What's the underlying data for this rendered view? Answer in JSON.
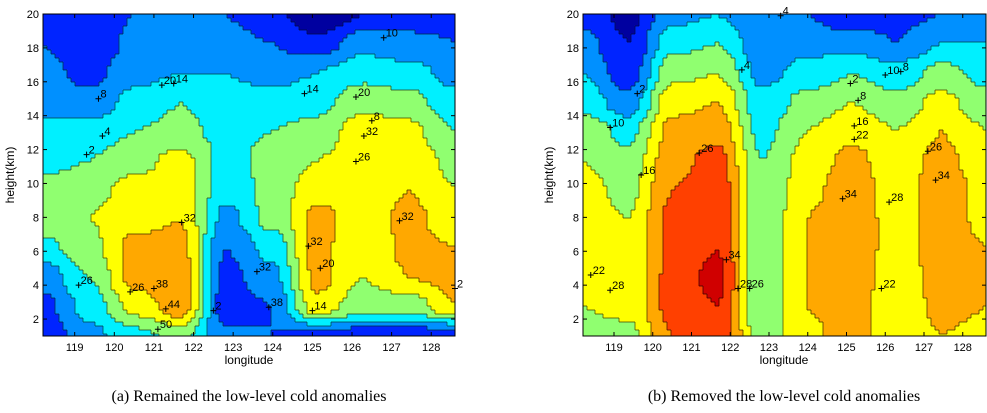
{
  "chart_data": [
    {
      "type": "contour",
      "caption": "(a) Remained the low-level cold anomalies",
      "xlabel": "longitude",
      "ylabel": "height(km)",
      "xlim": [
        118.2,
        128.6
      ],
      "ylim": [
        1,
        20
      ],
      "xticks": [
        119,
        120,
        121,
        122,
        123,
        124,
        125,
        126,
        127,
        128
      ],
      "yticks": [
        2,
        4,
        6,
        8,
        10,
        12,
        14,
        16,
        18,
        20
      ],
      "levels": [
        -4,
        2,
        8,
        14,
        20,
        26,
        32,
        38,
        44,
        50
      ],
      "field": [
        [
          4,
          12,
          18,
          22,
          10,
          8,
          6,
          4,
          4,
          4
        ],
        [
          6,
          16,
          28,
          36,
          4,
          8,
          30,
          22,
          22,
          32
        ],
        [
          10,
          20,
          34,
          36,
          6,
          12,
          34,
          26,
          32,
          34
        ],
        [
          18,
          24,
          34,
          34,
          8,
          16,
          34,
          26,
          34,
          32
        ],
        [
          24,
          26,
          30,
          32,
          12,
          22,
          34,
          28,
          34,
          28
        ],
        [
          22,
          24,
          28,
          30,
          16,
          22,
          30,
          28,
          32,
          26
        ],
        [
          18,
          20,
          24,
          28,
          18,
          22,
          26,
          30,
          30,
          24
        ],
        [
          16,
          16,
          20,
          22,
          18,
          20,
          22,
          30,
          28,
          20
        ],
        [
          12,
          10,
          16,
          20,
          16,
          16,
          18,
          24,
          22,
          16
        ],
        [
          10,
          6,
          12,
          14,
          14,
          12,
          14,
          18,
          16,
          12
        ],
        [
          8,
          2,
          10,
          12,
          10,
          8,
          4,
          12,
          10,
          8
        ],
        [
          6,
          4,
          8,
          8,
          8,
          4,
          -4,
          2,
          4,
          6
        ]
      ],
      "contour_labels": [
        {
          "text": "26",
          "x": 119.1,
          "y": 4.0
        },
        {
          "text": "26",
          "x": 120.4,
          "y": 3.6
        },
        {
          "text": "38",
          "x": 121.0,
          "y": 3.8
        },
        {
          "text": "44",
          "x": 121.3,
          "y": 2.6
        },
        {
          "text": "50",
          "x": 121.1,
          "y": 1.4
        },
        {
          "text": "32",
          "x": 121.7,
          "y": 7.7
        },
        {
          "text": "2",
          "x": 122.5,
          "y": 2.5
        },
        {
          "text": "32",
          "x": 123.6,
          "y": 4.8
        },
        {
          "text": "38",
          "x": 123.9,
          "y": 2.7
        },
        {
          "text": "32",
          "x": 124.9,
          "y": 6.3
        },
        {
          "text": "20",
          "x": 125.2,
          "y": 5.0
        },
        {
          "text": "26",
          "x": 126.1,
          "y": 11.3
        },
        {
          "text": "32",
          "x": 126.3,
          "y": 12.8
        },
        {
          "text": "32",
          "x": 127.2,
          "y": 7.8
        },
        {
          "text": "20",
          "x": 121.2,
          "y": 15.8
        },
        {
          "text": "14",
          "x": 121.5,
          "y": 15.9
        },
        {
          "text": "14",
          "x": 124.8,
          "y": 15.3
        },
        {
          "text": "20",
          "x": 126.1,
          "y": 15.1
        },
        {
          "text": "8",
          "x": 126.5,
          "y": 13.7
        },
        {
          "text": "10",
          "x": 126.8,
          "y": 18.6
        },
        {
          "text": "2",
          "x": 119.3,
          "y": 11.7
        },
        {
          "text": "4",
          "x": 119.7,
          "y": 12.8
        },
        {
          "text": "8",
          "x": 119.6,
          "y": 15.0
        },
        {
          "text": "2",
          "x": 128.6,
          "y": 3.8
        },
        {
          "text": "14",
          "x": 125.0,
          "y": 2.5
        }
      ]
    },
    {
      "type": "contour",
      "caption": "(b) Removed the low-level cold anomalies",
      "xlabel": "longitude",
      "ylabel": "height(km)",
      "xlim": [
        118.2,
        128.6
      ],
      "ylim": [
        1,
        20
      ],
      "xticks": [
        119,
        120,
        121,
        122,
        123,
        124,
        125,
        126,
        127,
        128
      ],
      "yticks": [
        2,
        4,
        6,
        8,
        10,
        12,
        14,
        16,
        18,
        20
      ],
      "levels": [
        -4,
        2,
        8,
        14,
        20,
        26,
        32,
        38,
        44,
        50
      ],
      "field": [
        [
          22,
          24,
          38,
          44,
          22,
          30,
          36,
          26,
          32,
          30
        ],
        [
          26,
          28,
          40,
          44,
          20,
          32,
          36,
          26,
          34,
          32
        ],
        [
          28,
          28,
          40,
          46,
          20,
          32,
          38,
          26,
          36,
          32
        ],
        [
          30,
          26,
          40,
          44,
          20,
          32,
          38,
          28,
          36,
          32
        ],
        [
          30,
          26,
          40,
          44,
          20,
          32,
          38,
          28,
          36,
          30
        ],
        [
          28,
          24,
          38,
          42,
          20,
          30,
          36,
          28,
          36,
          30
        ],
        [
          26,
          22,
          36,
          40,
          20,
          28,
          34,
          28,
          34,
          28
        ],
        [
          24,
          18,
          34,
          36,
          18,
          26,
          30,
          26,
          32,
          26
        ],
        [
          18,
          10,
          30,
          32,
          16,
          22,
          26,
          22,
          28,
          22
        ],
        [
          14,
          4,
          24,
          26,
          12,
          16,
          20,
          16,
          22,
          18
        ],
        [
          10,
          2,
          18,
          20,
          10,
          12,
          12,
          8,
          14,
          14
        ],
        [
          6,
          0,
          12,
          14,
          8,
          8,
          2,
          6,
          8,
          10
        ]
      ],
      "contour_labels": [
        {
          "text": "22",
          "x": 118.4,
          "y": 4.6
        },
        {
          "text": "28",
          "x": 118.9,
          "y": 3.7
        },
        {
          "text": "10",
          "x": 118.9,
          "y": 13.3
        },
        {
          "text": "16",
          "x": 119.7,
          "y": 10.5
        },
        {
          "text": "2",
          "x": 119.6,
          "y": 15.3
        },
        {
          "text": "26",
          "x": 121.2,
          "y": 11.8
        },
        {
          "text": "34",
          "x": 121.9,
          "y": 5.5
        },
        {
          "text": "28",
          "x": 122.2,
          "y": 3.8
        },
        {
          "text": "26",
          "x": 122.5,
          "y": 3.8
        },
        {
          "text": "4",
          "x": 122.3,
          "y": 16.7
        },
        {
          "text": "4",
          "x": 123.3,
          "y": 19.9
        },
        {
          "text": "34",
          "x": 124.9,
          "y": 9.1
        },
        {
          "text": "22",
          "x": 125.2,
          "y": 12.6
        },
        {
          "text": "16",
          "x": 125.2,
          "y": 13.4
        },
        {
          "text": "8",
          "x": 125.3,
          "y": 14.9
        },
        {
          "text": "2",
          "x": 125.1,
          "y": 15.9
        },
        {
          "text": "22",
          "x": 125.9,
          "y": 3.8
        },
        {
          "text": "28",
          "x": 126.1,
          "y": 8.9
        },
        {
          "text": "10",
          "x": 126.0,
          "y": 16.4
        },
        {
          "text": "8",
          "x": 126.4,
          "y": 16.6
        },
        {
          "text": "26",
          "x": 127.1,
          "y": 11.9
        },
        {
          "text": "34",
          "x": 127.3,
          "y": 10.2
        }
      ]
    }
  ],
  "colors": [
    "#0000a0",
    "#0024ff",
    "#0090ff",
    "#00f0ff",
    "#90ff70",
    "#ffff00",
    "#ffa800",
    "#ff4000",
    "#d00000",
    "#800000"
  ]
}
